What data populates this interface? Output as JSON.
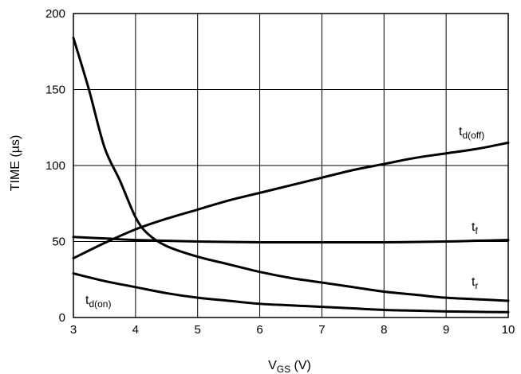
{
  "chart_data": {
    "type": "line",
    "xlabel": {
      "main": "V",
      "sub": "GS",
      "unit": " (V)"
    },
    "ylabel": "TIME (µs)",
    "xlim": [
      3,
      10
    ],
    "ylim": [
      0,
      200
    ],
    "x_ticks": [
      "3",
      "4",
      "5",
      "6",
      "7",
      "8",
      "9",
      "10"
    ],
    "y_ticks": [
      "0",
      "50",
      "100",
      "150",
      "200"
    ],
    "grid": true,
    "series": [
      {
        "name": {
          "main": "t",
          "sub": "d(off)"
        },
        "x": [
          3,
          3.5,
          4,
          4.5,
          5,
          5.5,
          6,
          6.5,
          7,
          7.5,
          8,
          8.5,
          9,
          9.5,
          10
        ],
        "y": [
          39,
          49,
          58,
          65,
          71,
          77,
          82,
          87,
          92,
          97,
          101,
          105,
          108,
          111,
          115
        ]
      },
      {
        "name": {
          "main": "t",
          "sub": "f"
        },
        "x": [
          3,
          3.5,
          4,
          5,
          6,
          7,
          8,
          9,
          9.5,
          10
        ],
        "y": [
          53,
          52,
          51,
          50,
          49.5,
          49.5,
          49.5,
          50,
          50.5,
          51
        ]
      },
      {
        "name": {
          "main": "t",
          "sub": "r"
        },
        "x": [
          3,
          3.25,
          3.5,
          3.75,
          4,
          4.2,
          4.5,
          5,
          5.5,
          6,
          6.5,
          7,
          7.5,
          8,
          8.5,
          9,
          9.5,
          10
        ],
        "y": [
          184,
          150,
          112,
          90,
          66,
          55,
          47,
          40,
          35,
          30,
          26,
          23,
          20,
          17,
          15,
          13,
          12,
          11
        ]
      },
      {
        "name": {
          "main": "t",
          "sub": "d(on)"
        },
        "x": [
          3,
          3.5,
          4,
          4.5,
          5,
          5.5,
          6,
          6.5,
          7,
          7.5,
          8,
          8.5,
          9,
          9.5,
          10
        ],
        "y": [
          29,
          24,
          20,
          16,
          13,
          11,
          9,
          8,
          7,
          6,
          5,
          4.5,
          4,
          3.7,
          3.5
        ]
      }
    ]
  }
}
